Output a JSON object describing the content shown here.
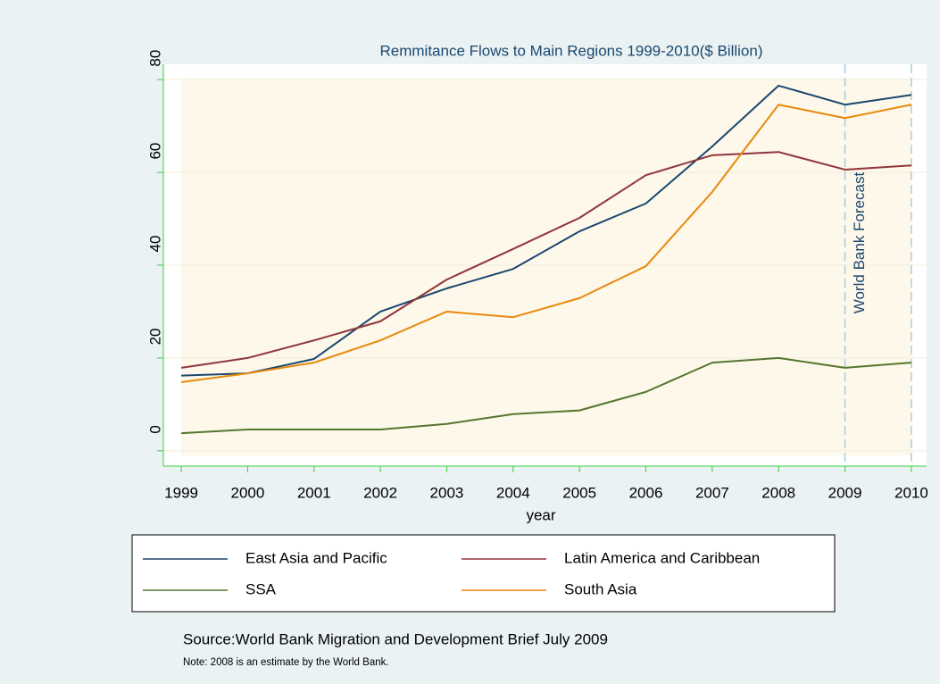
{
  "chart_data": {
    "type": "line",
    "title": "Remmitance Flows to Main Regions 1999-2010($ Billion)",
    "x_label": "year",
    "x": [
      1999,
      2000,
      2001,
      2002,
      2003,
      2004,
      2005,
      2006,
      2007,
      2008,
      2009,
      2010
    ],
    "series": [
      {
        "name": "East Asia and Pacific",
        "color": "#1a476f",
        "values": [
          16.2,
          16.7,
          19.8,
          30,
          35,
          39.2,
          47.3,
          53.3,
          65.6,
          78.7,
          74.6,
          76.7
        ]
      },
      {
        "name": "Latin America and Caribbean",
        "color": "#90353b",
        "values": [
          17.9,
          20,
          23.8,
          27.9,
          36.9,
          43.5,
          50.2,
          59.4,
          63.7,
          64.4,
          60.6,
          61.5
        ]
      },
      {
        "name": "SSA",
        "color": "#55752f",
        "values": [
          3.8,
          4.6,
          4.6,
          4.6,
          5.8,
          7.9,
          8.7,
          12.7,
          19,
          20,
          17.9,
          19
        ]
      },
      {
        "name": "South Asia",
        "color": "#e8890c",
        "values": [
          14.8,
          16.7,
          19,
          23.8,
          30,
          28.8,
          32.9,
          39.8,
          55.8,
          74.6,
          71.7,
          74.6
        ]
      }
    ],
    "xlim": [
      1998.73,
      2010.23
    ],
    "xticks": [
      1999,
      2000,
      2001,
      2002,
      2003,
      2004,
      2005,
      2006,
      2007,
      2008,
      2009,
      2010
    ],
    "ylim": [
      -3.3,
      83.3
    ],
    "yticks": [
      0,
      20,
      40,
      60,
      80
    ],
    "grid": true,
    "forecast_lines": [
      2009,
      2010
    ],
    "annotation": "World Bank Forecast",
    "source": "Source:World Bank Migration and Development Brief July 2009",
    "note": "Note: 2008 is an estimate by the World Bank."
  }
}
